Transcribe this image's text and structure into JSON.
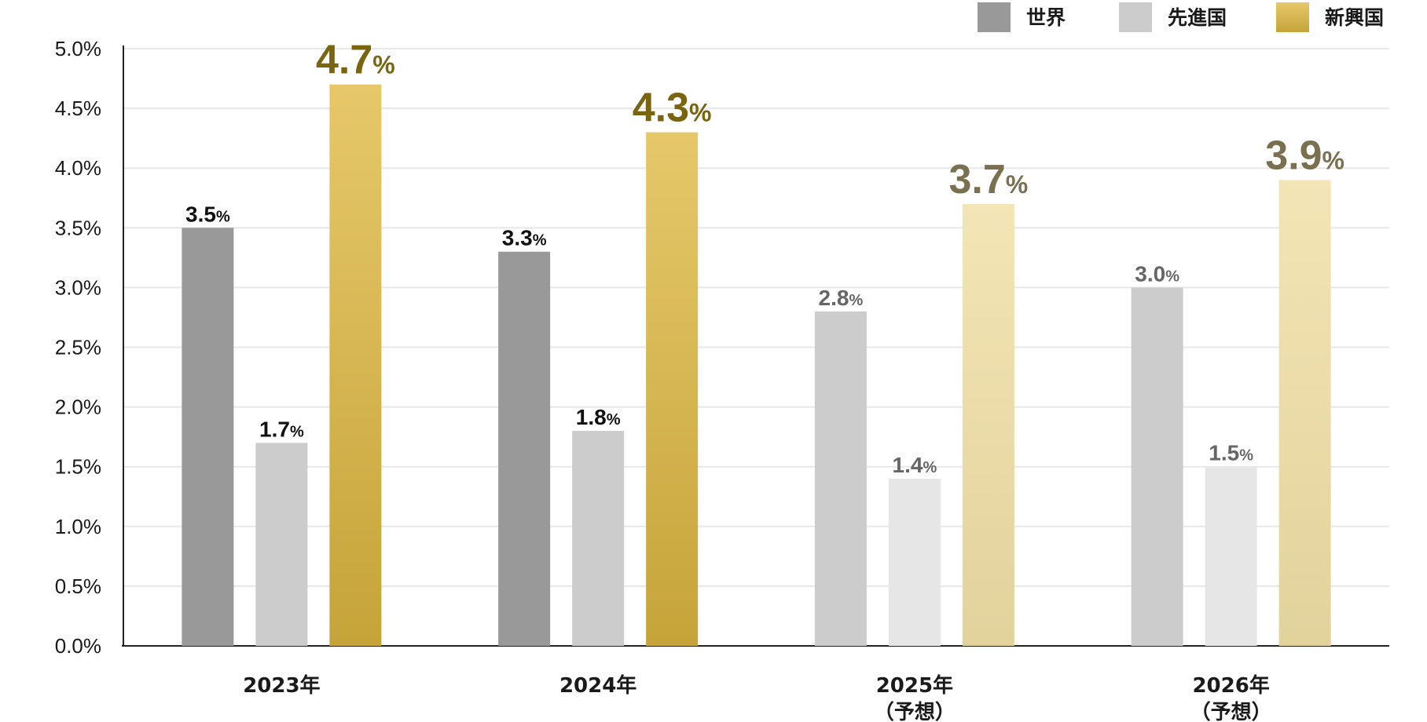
{
  "chart_data": {
    "type": "bar",
    "title": "",
    "xlabel": "",
    "ylabel": "",
    "ylim": [
      0,
      5.0
    ],
    "y_ticks": [
      0.0,
      0.5,
      1.0,
      1.5,
      2.0,
      2.5,
      3.0,
      3.5,
      4.0,
      4.5,
      5.0
    ],
    "y_tick_labels": [
      "0.0%",
      "0.5%",
      "1.0%",
      "1.5%",
      "2.0%",
      "2.5%",
      "3.0%",
      "3.5%",
      "4.0%",
      "4.5%",
      "5.0%"
    ],
    "grid": true,
    "legend_position": "top-right",
    "categories": [
      [
        "2023年"
      ],
      [
        "2024年"
      ],
      [
        "2025年",
        "（予想）"
      ],
      [
        "2026年",
        "（予想）"
      ]
    ],
    "forecast_from_index": 2,
    "series": [
      {
        "name": "世界",
        "values": [
          3.5,
          3.3,
          2.8,
          3.0
        ],
        "labels": [
          "3.5",
          "3.3",
          "2.8",
          "3.0"
        ],
        "color": "#999999",
        "forecast_color": "#cccccc"
      },
      {
        "name": "先進国",
        "values": [
          1.7,
          1.8,
          1.4,
          1.5
        ],
        "labels": [
          "1.7",
          "1.8",
          "1.4",
          "1.5"
        ],
        "color": "#cccccc",
        "forecast_color": "#e6e6e6"
      },
      {
        "name": "新興国",
        "values": [
          4.7,
          4.3,
          3.7,
          3.9
        ],
        "labels": [
          "4.7",
          "4.3",
          "3.7",
          "3.9"
        ],
        "color_top": "#e6c86a",
        "color_bottom": "#c6a43a",
        "forecast_color_top": "#f3e5b5",
        "forecast_color_bottom": "#e2d29c",
        "highlight": true
      }
    ],
    "percent_suffix": "%",
    "label_colors": {
      "actual": "#111111",
      "forecast": "#666666",
      "highlight_actual": "#7a6410",
      "highlight_forecast": "#7a7050"
    }
  }
}
